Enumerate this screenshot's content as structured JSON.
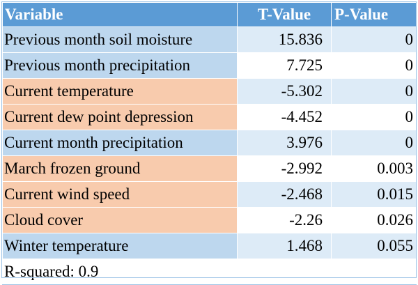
{
  "header": {
    "variable": "Variable",
    "t_value": "T-Value",
    "p_value": "P-Value"
  },
  "rows": [
    {
      "variable": "Previous month soil moisture",
      "t": "15.836",
      "p": "0",
      "category": "blue"
    },
    {
      "variable": "Previous month precipitation",
      "t": "7.725",
      "p": "0",
      "category": "blue"
    },
    {
      "variable": "Current temperature",
      "t": "-5.302",
      "p": "0",
      "category": "orange"
    },
    {
      "variable": "Current dew point depression",
      "t": "-4.452",
      "p": "0",
      "category": "orange"
    },
    {
      "variable": "Current month precipitation",
      "t": "3.976",
      "p": "0",
      "category": "blue"
    },
    {
      "variable": "March frozen ground",
      "t": "-2.992",
      "p": "0.003",
      "category": "orange"
    },
    {
      "variable": "Current wind speed",
      "t": "-2.468",
      "p": "0.015",
      "category": "orange"
    },
    {
      "variable": "Cloud cover",
      "t": "-2.26",
      "p": "0.026",
      "category": "orange"
    },
    {
      "variable": "Winter temperature",
      "t": "1.468",
      "p": "0.055",
      "category": "blue"
    }
  ],
  "footer": {
    "r_squared": "R-squared: 0.9"
  },
  "colors": {
    "header": "#5b9bd5",
    "positive": "#bdd7ee",
    "negative": "#f8cbad",
    "value_alt": "#ddebf7",
    "value_plain": "#ffffff"
  }
}
